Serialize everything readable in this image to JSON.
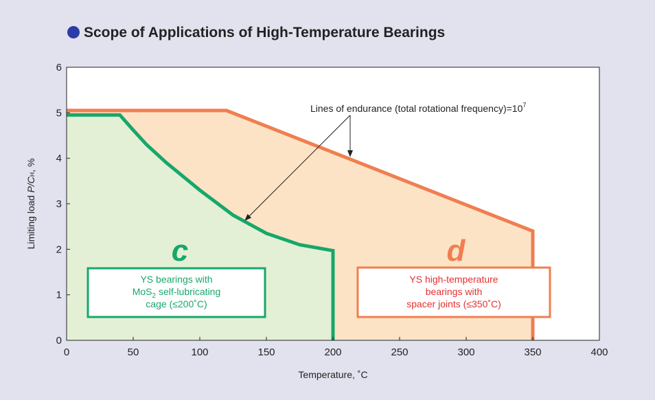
{
  "chart_data": {
    "type": "area",
    "title": "Scope of Applications of High-Temperature Bearings",
    "xlabel": "Temperature, ˚C",
    "ylabel": {
      "a": "Limiting load ",
      "b": "P/C",
      "sub": "H",
      "c": ", %"
    },
    "xlim": [
      0,
      400
    ],
    "xticks": [
      0,
      50,
      100,
      150,
      200,
      250,
      300,
      350,
      400
    ],
    "ylim": [
      0,
      6
    ],
    "yticks": [
      0,
      1,
      2,
      3,
      4,
      5,
      6
    ],
    "series": [
      {
        "color": "#f07e50",
        "fill": "#fde3c5",
        "x": [
          0,
          120,
          350,
          350
        ],
        "values": [
          5.05,
          5.05,
          2.4,
          0
        ]
      },
      {
        "color": "#17a76b",
        "fill": "#e3f0d5",
        "x": [
          0,
          40,
          50,
          60,
          75,
          100,
          125,
          150,
          175,
          200,
          200
        ],
        "values": [
          4.95,
          4.95,
          4.62,
          4.3,
          3.9,
          3.3,
          2.75,
          2.35,
          2.1,
          1.97,
          0
        ]
      }
    ],
    "annotation": {
      "text": "Lines of endurance (total rotational frequency)=10",
      "sup": "7"
    },
    "region_c": {
      "letter": "c",
      "line1": "YS bearings with",
      "line2a": "MoS",
      "line2sub": "2",
      "line2b": " self-lubricating",
      "line3": "cage (≤200˚C)"
    },
    "region_d": {
      "letter": "d",
      "line1": "YS high-temperature",
      "line2": "bearings with",
      "line3": "spacer joints (≤350˚C)"
    }
  }
}
